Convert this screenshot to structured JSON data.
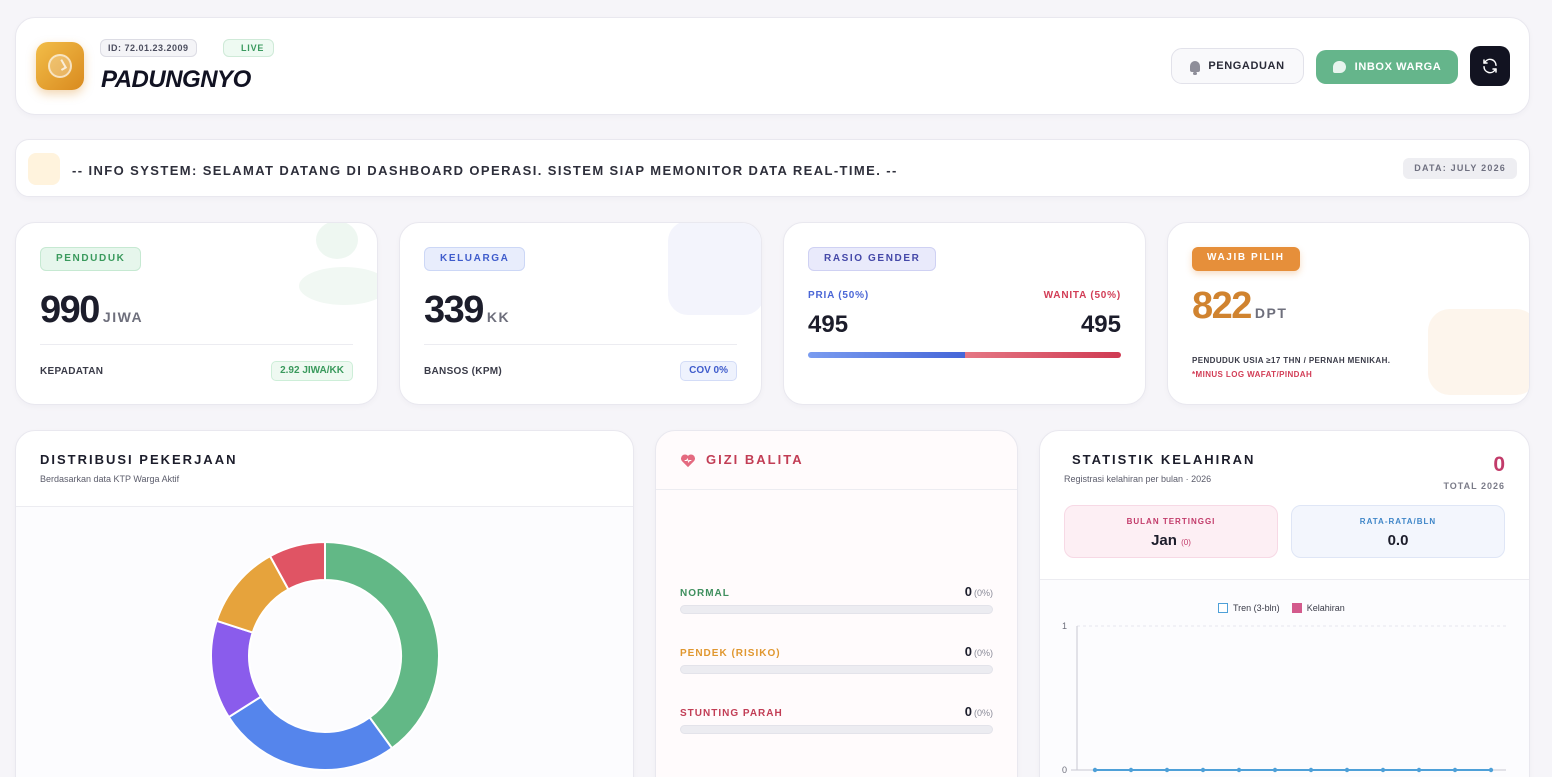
{
  "header": {
    "id_badge": "ID: 72.01.23.2009",
    "live_label": "LIVE",
    "brand": "PADUNGNYO",
    "pengaduan_label": "PENGADUAN",
    "inbox_label": "INBOX WARGA"
  },
  "info_bar": {
    "message": "-- INFO SYSTEM: SELAMAT DATANG DI DASHBOARD OPERASI. SISTEM SIAP MEMONITOR DATA REAL-TIME. --",
    "date_label": "DATA: JULY 2026"
  },
  "stats": {
    "penduduk": {
      "label": "PENDUDUK",
      "value": "990",
      "unit": "JIWA",
      "foot_label": "KEPADATAN",
      "foot_value": "2.92 JIWA/KK"
    },
    "keluarga": {
      "label": "KELUARGA",
      "value": "339",
      "unit": "KK",
      "foot_label": "BANSOS (KPM)",
      "foot_value": "COV 0%"
    },
    "gender": {
      "label": "RASIO GENDER",
      "pria_label": "PRIA (50%)",
      "wanita_label": "WANITA (50%)",
      "pria_value": "495",
      "wanita_value": "495",
      "pria_ratio": 0.5
    },
    "wajib_pilih": {
      "label": "WAJIB PILIH",
      "value": "822",
      "unit": "DPT",
      "note": "PENDUDUK USIA ≥17 THN / PERNAH MENIKAH.",
      "note_red": "*MINUS LOG WAFAT/PINDAH"
    }
  },
  "pekerjaan": {
    "title": "DISTRIBUSI PEKERJAAN",
    "subtitle": "Berdasarkan data KTP Warga Aktif"
  },
  "gizi": {
    "title": "GIZI BALITA",
    "rows": [
      {
        "label": "NORMAL",
        "value": "0",
        "pct": "(0%)",
        "color": "#3f8f5e"
      },
      {
        "label": "PENDEK (RISIKO)",
        "value": "0",
        "pct": "(0%)",
        "color": "#e0972f"
      },
      {
        "label": "STUNTING PARAH",
        "value": "0",
        "pct": "(0%)",
        "color": "#c23d55"
      }
    ]
  },
  "kelahiran": {
    "title": "STATISTIK KELAHIRAN",
    "subtitle": "Registrasi kelahiran per bulan · 2026",
    "total_value": "0",
    "total_label": "TOTAL 2026",
    "tertinggi_label": "BULAN TERTINGGI",
    "tertinggi_month": "Jan",
    "tertinggi_count": "(0)",
    "rata_label": "RATA-RATA/BLN",
    "rata_value": "0.0"
  },
  "chart_data": [
    {
      "type": "pie",
      "title": "DISTRIBUSI PEKERJAAN",
      "values": [
        40,
        26,
        14,
        12,
        8
      ],
      "colors": [
        "#62b886",
        "#5585ec",
        "#8a5cec",
        "#e6a33c",
        "#e05464"
      ]
    },
    {
      "type": "line",
      "series": [
        {
          "name": "Tren (3-bln)",
          "values": [
            0,
            0,
            0,
            0,
            0,
            0,
            0,
            0,
            0,
            0,
            0,
            0
          ],
          "color": "#4ea0d8"
        },
        {
          "name": "Kelahiran",
          "values": [
            0,
            0,
            0,
            0,
            0,
            0,
            0,
            0,
            0,
            0,
            0,
            0
          ],
          "color": "#d35a8c"
        }
      ],
      "ylim": [
        0,
        1
      ],
      "yticks": [
        "0",
        "1"
      ]
    }
  ]
}
